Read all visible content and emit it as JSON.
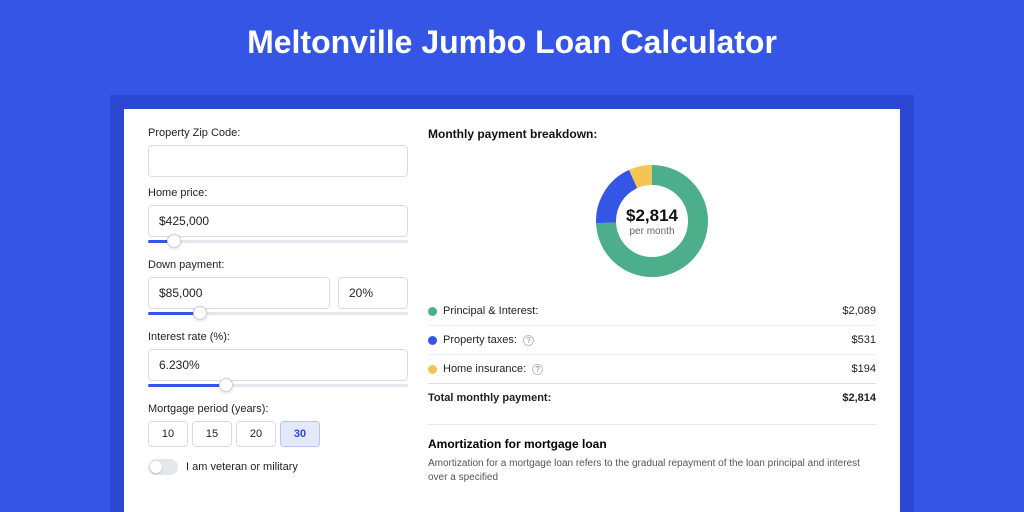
{
  "page": {
    "title": "Meltonville Jumbo Loan Calculator",
    "background_color": "#3555e6",
    "stage_color": "#2a48d4",
    "card_color": "#ffffff"
  },
  "form": {
    "zip": {
      "label": "Property Zip Code:",
      "value": ""
    },
    "home_price": {
      "label": "Home price:",
      "value": "$425,000",
      "slider_pct": 10
    },
    "down_payment": {
      "label": "Down payment:",
      "value": "$85,000",
      "pct_value": "20%",
      "slider_pct": 20
    },
    "interest_rate": {
      "label": "Interest rate (%):",
      "value": "6.230%",
      "slider_pct": 30
    },
    "mortgage_period": {
      "label": "Mortgage period (years):",
      "options": [
        "10",
        "15",
        "20",
        "30"
      ],
      "selected": "30"
    },
    "veteran": {
      "label": "I am veteran or military",
      "checked": false
    }
  },
  "breakdown": {
    "title": "Monthly payment breakdown:",
    "center_value": "$2,814",
    "center_sub": "per month",
    "rows": [
      {
        "label": "Principal & Interest:",
        "value": "$2,089",
        "color": "#4cae8a",
        "num": 2089,
        "info": false
      },
      {
        "label": "Property taxes:",
        "value": "$531",
        "color": "#3555e6",
        "num": 531,
        "info": true
      },
      {
        "label": "Home insurance:",
        "value": "$194",
        "color": "#f3c557",
        "num": 194,
        "info": true
      }
    ],
    "total": {
      "label": "Total monthly payment:",
      "value": "$2,814",
      "num": 2814
    },
    "donut": {
      "radius": 46,
      "stroke_width": 20,
      "track_color": "#f2f3f5"
    }
  },
  "amort": {
    "title": "Amortization for mortgage loan",
    "text": "Amortization for a mortgage loan refers to the gradual repayment of the loan principal and interest over a specified"
  }
}
